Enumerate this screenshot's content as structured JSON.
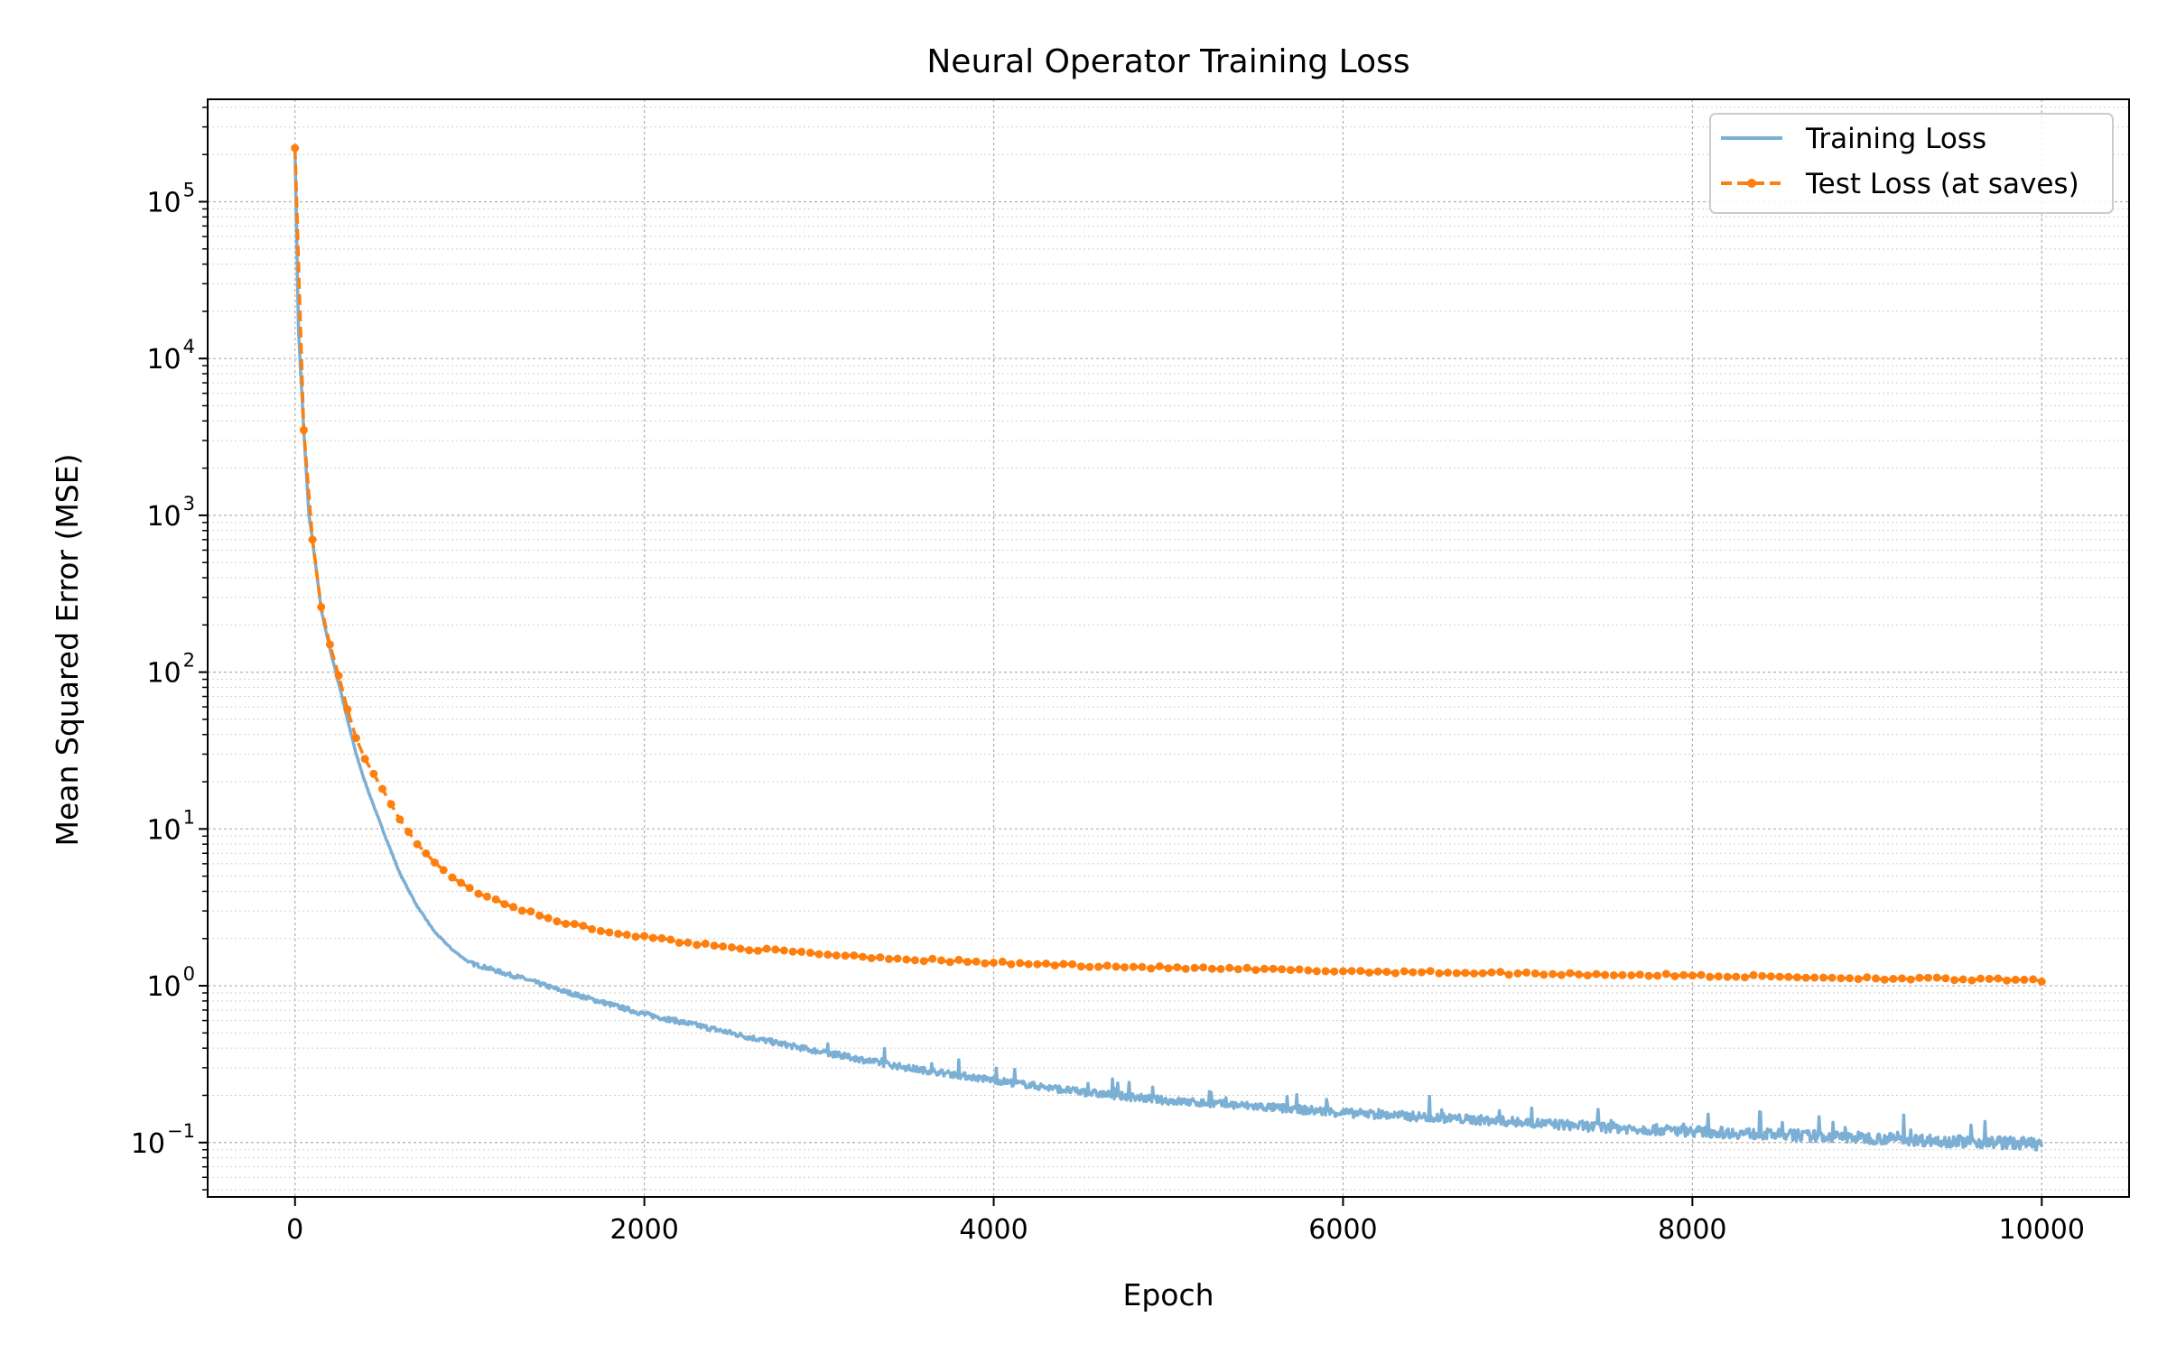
{
  "chart_data": {
    "type": "line",
    "title": "Neural Operator Training Loss",
    "xlabel": "Epoch",
    "ylabel": "Mean Squared Error (MSE)",
    "xlim": [
      -500,
      10500
    ],
    "ylim": [
      0.045,
      450000
    ],
    "yscale": "log",
    "x_ticks": [
      0,
      2000,
      4000,
      6000,
      8000,
      10000
    ],
    "x_tick_labels": [
      "0",
      "2000",
      "4000",
      "6000",
      "8000",
      "10000"
    ],
    "y_ticks": [
      {
        "value": 0.1,
        "base": "10",
        "exp": "−1"
      },
      {
        "value": 1,
        "base": "10",
        "exp": "0"
      },
      {
        "value": 10,
        "base": "10",
        "exp": "1"
      },
      {
        "value": 100,
        "base": "10",
        "exp": "2"
      },
      {
        "value": 1000,
        "base": "10",
        "exp": "3"
      },
      {
        "value": 10000,
        "base": "10",
        "exp": "4"
      },
      {
        "value": 100000,
        "base": "10",
        "exp": "5"
      }
    ],
    "grid": true,
    "legend_position": "top-right",
    "series": [
      {
        "name": "Training Loss",
        "color": "#7bafd4",
        "style": "solid",
        "x": [
          0,
          20,
          50,
          80,
          100,
          150,
          200,
          250,
          300,
          350,
          400,
          500,
          600,
          700,
          800,
          900,
          1000,
          1100,
          1200,
          1300,
          1400,
          1500,
          1700,
          2000,
          2300,
          2600,
          3000,
          3500,
          4000,
          4500,
          5000,
          5500,
          6000,
          6500,
          7000,
          7500,
          8000,
          8500,
          9000,
          9500,
          10000
        ],
        "y": [
          220000,
          15000,
          3500,
          1000,
          700,
          250,
          140,
          85,
          50,
          30,
          20,
          10,
          5.2,
          3.2,
          2.2,
          1.7,
          1.4,
          1.3,
          1.2,
          1.12,
          1.03,
          0.95,
          0.82,
          0.66,
          0.56,
          0.47,
          0.38,
          0.3,
          0.25,
          0.21,
          0.185,
          0.17,
          0.155,
          0.145,
          0.135,
          0.125,
          0.118,
          0.112,
          0.107,
          0.102,
          0.098
        ]
      },
      {
        "name": "Test Loss (at saves)",
        "color": "#ff7f0e",
        "style": "dashed",
        "marker": "circle",
        "x": [
          0,
          20,
          50,
          80,
          100,
          150,
          200,
          250,
          300,
          350,
          400,
          500,
          600,
          700,
          800,
          900,
          1000,
          1100,
          1200,
          1300,
          1400,
          1500,
          1700,
          2000,
          2300,
          2600,
          3000,
          3500,
          4000,
          4500,
          5000,
          5500,
          6000,
          6500,
          7000,
          7500,
          8000,
          8500,
          9000,
          9500,
          10000
        ],
        "y": [
          220000,
          15000,
          3500,
          1000,
          700,
          260,
          150,
          95,
          58,
          38,
          28,
          18,
          11.5,
          8,
          6.1,
          4.9,
          4.2,
          3.7,
          3.35,
          3.05,
          2.8,
          2.6,
          2.3,
          2.05,
          1.85,
          1.72,
          1.6,
          1.48,
          1.4,
          1.35,
          1.3,
          1.27,
          1.24,
          1.22,
          1.2,
          1.18,
          1.16,
          1.14,
          1.12,
          1.1,
          1.08
        ]
      }
    ]
  }
}
